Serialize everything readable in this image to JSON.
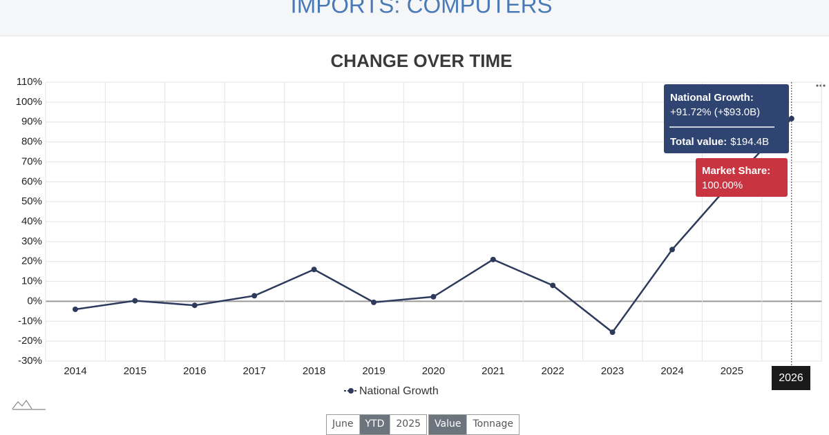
{
  "header": {
    "title": "IMPORTS: COMPUTERS"
  },
  "chart_data": {
    "type": "line",
    "title": "CHANGE OVER TIME",
    "categories": [
      "2014",
      "2015",
      "2016",
      "2017",
      "2018",
      "2019",
      "2020",
      "2021",
      "2022",
      "2023",
      "2024",
      "2025",
      "2026"
    ],
    "series": [
      {
        "name": "National Growth",
        "color": "#2e3a5c",
        "values": [
          -4,
          0.3,
          -2,
          2.8,
          16,
          -0.5,
          2.3,
          21,
          8,
          -15.5,
          26,
          60,
          91.72
        ]
      }
    ],
    "ylim": [
      -30,
      110
    ],
    "yticks": [
      {
        "value": -30,
        "label": "-30%"
      },
      {
        "value": -20,
        "label": "-20%"
      },
      {
        "value": -10,
        "label": "-10%"
      },
      {
        "value": 0,
        "label": "0%"
      },
      {
        "value": 10,
        "label": "10%"
      },
      {
        "value": 20,
        "label": "20%"
      },
      {
        "value": 30,
        "label": "30%"
      },
      {
        "value": 40,
        "label": "40%"
      },
      {
        "value": 50,
        "label": "50%"
      },
      {
        "value": 60,
        "label": "60%"
      },
      {
        "value": 70,
        "label": "70%"
      },
      {
        "value": 80,
        "label": "80%"
      },
      {
        "value": 90,
        "label": "90%"
      },
      {
        "value": 100,
        "label": "100%"
      },
      {
        "value": 110,
        "label": "110%"
      }
    ],
    "grid": true,
    "legend": "bottom"
  },
  "tooltip": {
    "title": "National Growth:",
    "text": "+91.72% (+$93.0B)",
    "total_label": "Total value:",
    "total_value": "$194.4B"
  },
  "tooltip2": {
    "title": "Market Share:",
    "text": "100.00%"
  },
  "controls": {
    "period": [
      "June",
      "YTD",
      "2025"
    ],
    "measure": [
      "Value",
      "Tonnage"
    ]
  }
}
